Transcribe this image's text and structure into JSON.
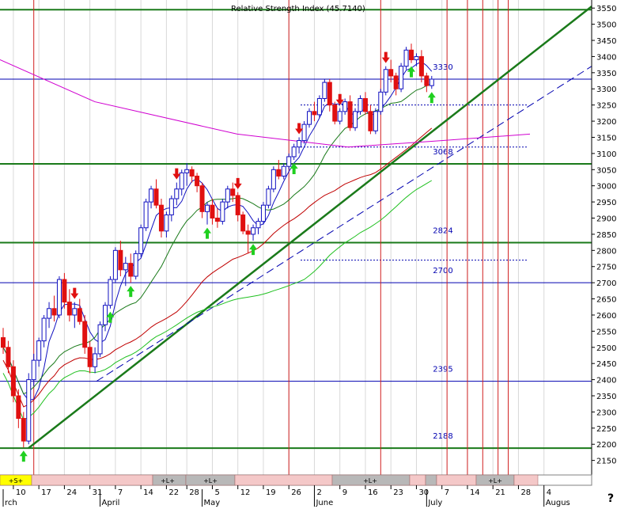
{
  "header_text": "Relative Strength Index (45.7140)",
  "help_mark": "?",
  "colors": {
    "up": "#1010c0",
    "down": "#e01010",
    "support": "#1a7a1a",
    "level": "#0000b0",
    "ma_fast": "#1010c0",
    "ma_mid": "#1a7a1a",
    "ma_red": "#c00000",
    "ma_green": "#20c020",
    "ma_magenta": "#d000d0",
    "vline": "#d02020"
  },
  "chart_data": {
    "type": "candlestick",
    "y_ticks": [
      2150,
      2200,
      2250,
      2300,
      2350,
      2400,
      2450,
      2500,
      2550,
      2600,
      2650,
      2700,
      2750,
      2800,
      2850,
      2900,
      2950,
      3000,
      3050,
      3100,
      3150,
      3200,
      3250,
      3300,
      3350,
      3400,
      3450,
      3500,
      3550
    ],
    "ylim": [
      2105,
      3575
    ],
    "x_ticks": [
      {
        "label": "10",
        "i": 2
      },
      {
        "label": "17",
        "i": 7
      },
      {
        "label": "24",
        "i": 12
      },
      {
        "label": "31",
        "i": 17
      },
      {
        "label": "7",
        "i": 22
      },
      {
        "label": "14",
        "i": 27
      },
      {
        "label": "22",
        "i": 32
      },
      {
        "label": "28",
        "i": 36
      },
      {
        "label": "5",
        "i": 41
      },
      {
        "label": "12",
        "i": 46
      },
      {
        "label": "19",
        "i": 51
      },
      {
        "label": "26",
        "i": 56
      },
      {
        "label": "2",
        "i": 61
      },
      {
        "label": "9",
        "i": 66
      },
      {
        "label": "16",
        "i": 71
      },
      {
        "label": "23",
        "i": 76
      },
      {
        "label": "30",
        "i": 81
      },
      {
        "label": "7",
        "i": 86
      },
      {
        "label": "14",
        "i": 91
      },
      {
        "label": "21",
        "i": 96
      },
      {
        "label": "28",
        "i": 101
      },
      {
        "label": "4",
        "i": 106
      }
    ],
    "month_labels": [
      {
        "label": "rch",
        "i": 0
      },
      {
        "label": "April",
        "i": 19
      },
      {
        "label": "May",
        "i": 39
      },
      {
        "label": "June",
        "i": 61
      },
      {
        "label": "July",
        "i": 83
      },
      {
        "label": "Augus",
        "i": 106
      }
    ],
    "n_slots": 110,
    "levels": [
      {
        "value": 3545,
        "label": "",
        "style": "support"
      },
      {
        "value": 3330,
        "label": "3330",
        "style": "level"
      },
      {
        "value": 3068,
        "label": "3068",
        "style": "support"
      },
      {
        "value": 2824,
        "label": "2824",
        "style": "support"
      },
      {
        "value": 2700,
        "label": "2700",
        "style": "level"
      },
      {
        "value": 2395,
        "label": "2395",
        "style": "level"
      },
      {
        "value": 2188,
        "label": "2188",
        "style": "support"
      }
    ],
    "dotted_levels": [
      3250,
      3120,
      2770
    ],
    "candles": [
      [
        2530,
        2560,
        2480,
        2500
      ],
      [
        2500,
        2520,
        2420,
        2440
      ],
      [
        2440,
        2460,
        2330,
        2350
      ],
      [
        2350,
        2370,
        2250,
        2280
      ],
      [
        2280,
        2300,
        2190,
        2210
      ],
      [
        2210,
        2420,
        2200,
        2400
      ],
      [
        2400,
        2480,
        2380,
        2460
      ],
      [
        2460,
        2530,
        2440,
        2520
      ],
      [
        2520,
        2600,
        2500,
        2590
      ],
      [
        2590,
        2640,
        2560,
        2620
      ],
      [
        2620,
        2660,
        2580,
        2600
      ],
      [
        2600,
        2720,
        2590,
        2710
      ],
      [
        2710,
        2730,
        2620,
        2640
      ],
      [
        2640,
        2680,
        2580,
        2600
      ],
      [
        2600,
        2640,
        2560,
        2620
      ],
      [
        2620,
        2650,
        2570,
        2580
      ],
      [
        2580,
        2600,
        2480,
        2500
      ],
      [
        2500,
        2520,
        2420,
        2440
      ],
      [
        2440,
        2500,
        2420,
        2480
      ],
      [
        2480,
        2580,
        2470,
        2570
      ],
      [
        2570,
        2640,
        2550,
        2630
      ],
      [
        2630,
        2720,
        2620,
        2710
      ],
      [
        2710,
        2810,
        2700,
        2800
      ],
      [
        2800,
        2830,
        2720,
        2740
      ],
      [
        2740,
        2780,
        2690,
        2760
      ],
      [
        2760,
        2790,
        2700,
        2720
      ],
      [
        2720,
        2800,
        2710,
        2790
      ],
      [
        2790,
        2880,
        2780,
        2870
      ],
      [
        2870,
        2960,
        2860,
        2950
      ],
      [
        2950,
        3000,
        2930,
        2990
      ],
      [
        2990,
        3020,
        2930,
        2940
      ],
      [
        2940,
        2960,
        2840,
        2860
      ],
      [
        2860,
        2920,
        2840,
        2910
      ],
      [
        2910,
        2970,
        2890,
        2960
      ],
      [
        2960,
        3010,
        2940,
        2990
      ],
      [
        2990,
        3050,
        2970,
        3040
      ],
      [
        3040,
        3070,
        3000,
        3050
      ],
      [
        3050,
        3060,
        3010,
        3030
      ],
      [
        3030,
        3040,
        2980,
        3000
      ],
      [
        3000,
        3010,
        2900,
        2920
      ],
      [
        2920,
        2950,
        2880,
        2940
      ],
      [
        2940,
        2960,
        2880,
        2900
      ],
      [
        2900,
        2930,
        2870,
        2890
      ],
      [
        2890,
        2960,
        2880,
        2950
      ],
      [
        2950,
        3000,
        2930,
        2990
      ],
      [
        2990,
        3010,
        2950,
        2970
      ],
      [
        2970,
        2980,
        2890,
        2910
      ],
      [
        2910,
        2920,
        2850,
        2860
      ],
      [
        2860,
        2880,
        2790,
        2850
      ],
      [
        2850,
        2880,
        2830,
        2870
      ],
      [
        2870,
        2900,
        2850,
        2890
      ],
      [
        2890,
        2950,
        2880,
        2940
      ],
      [
        2940,
        3000,
        2930,
        2990
      ],
      [
        2990,
        3060,
        2980,
        3050
      ],
      [
        3050,
        3080,
        3020,
        3030
      ],
      [
        3030,
        3070,
        3020,
        3060
      ],
      [
        3060,
        3100,
        3050,
        3090
      ],
      [
        3090,
        3130,
        3080,
        3120
      ],
      [
        3120,
        3150,
        3100,
        3140
      ],
      [
        3140,
        3200,
        3130,
        3190
      ],
      [
        3190,
        3240,
        3180,
        3230
      ],
      [
        3230,
        3260,
        3200,
        3220
      ],
      [
        3220,
        3280,
        3210,
        3270
      ],
      [
        3270,
        3330,
        3260,
        3320
      ],
      [
        3320,
        3330,
        3230,
        3250
      ],
      [
        3250,
        3260,
        3190,
        3200
      ],
      [
        3200,
        3240,
        3190,
        3230
      ],
      [
        3230,
        3270,
        3220,
        3260
      ],
      [
        3260,
        3280,
        3170,
        3180
      ],
      [
        3180,
        3240,
        3170,
        3230
      ],
      [
        3230,
        3280,
        3220,
        3270
      ],
      [
        3270,
        3290,
        3220,
        3230
      ],
      [
        3230,
        3250,
        3160,
        3170
      ],
      [
        3170,
        3240,
        3160,
        3230
      ],
      [
        3230,
        3300,
        3220,
        3290
      ],
      [
        3290,
        3370,
        3280,
        3360
      ],
      [
        3360,
        3390,
        3320,
        3340
      ],
      [
        3340,
        3350,
        3280,
        3300
      ],
      [
        3300,
        3380,
        3290,
        3370
      ],
      [
        3370,
        3430,
        3360,
        3420
      ],
      [
        3420,
        3440,
        3380,
        3390
      ],
      [
        3390,
        3410,
        3370,
        3400
      ],
      [
        3400,
        3420,
        3320,
        3340
      ],
      [
        3340,
        3350,
        3290,
        3310
      ],
      [
        3310,
        3340,
        3300,
        3330
      ]
    ],
    "candle_offset": 0,
    "arrows_down": [
      14,
      34,
      46,
      58,
      66,
      75,
      86,
      88,
      96
    ],
    "arrows_up": [
      4,
      21,
      25,
      40,
      49,
      57,
      80,
      84,
      95
    ],
    "vlines": [
      6,
      56,
      74,
      87,
      91,
      94,
      97,
      99
    ],
    "shaded_vlines": [
      39,
      68
    ],
    "calendar_labels": [
      {
        "label": "+S+",
        "i": 1
      },
      {
        "label": "+L+",
        "i": 42
      },
      {
        "label": "+L+",
        "i": 52
      },
      {
        "label": "+L+",
        "i": 90
      },
      {
        "label": "+L+",
        "i": 127
      }
    ]
  }
}
